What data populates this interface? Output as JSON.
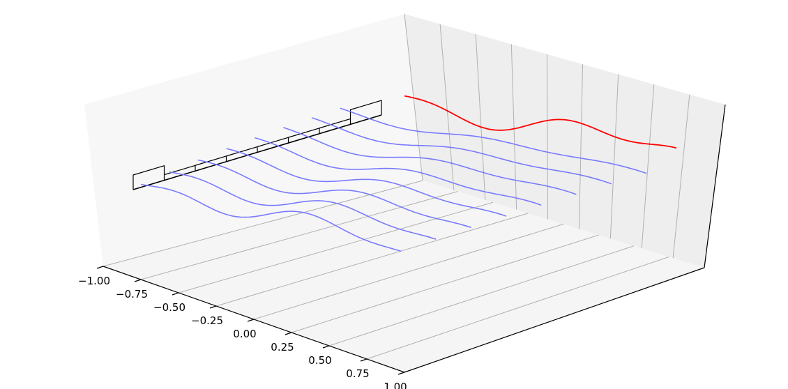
{
  "chart_data": {
    "type": "line",
    "projection": "3d",
    "title": "",
    "xlabel": "",
    "ylabel": "",
    "zlabel": "",
    "x_ticks": [
      "−1.00",
      "−0.75",
      "−0.50",
      "−0.25",
      "0.00",
      "0.25",
      "0.50",
      "0.75",
      "1.00"
    ],
    "x_range": [
      -1.0,
      1.0
    ],
    "y_axis_tick_labels": "none",
    "z_axis_tick_labels": "none",
    "grid": true,
    "legend": "none",
    "series_style": {
      "trace_color": "#7a7aff",
      "projection_color": "#ff0000",
      "histogram_color": "#000000"
    },
    "trace_count": 8,
    "waveform": "y = sin(2.2·x) + 0.35·sin(6.5·x) decaying toward +x",
    "histogram": {
      "axis": "back-left edge",
      "bins": 8,
      "bars": "first and last bins taller than the inner bins"
    }
  }
}
